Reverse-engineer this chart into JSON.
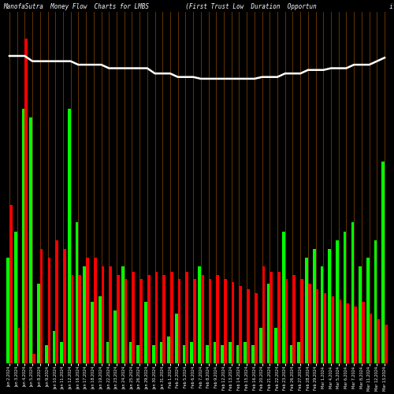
{
  "title": "ManofaSutra  Money Flow  Charts for LMBS          (First Trust Low  Duration  Opportun                    it",
  "background_color": "#000000",
  "grid_color": "#8B4500",
  "line_color": "#FFFFFF",
  "categories": [
    "Jan 2,2024",
    "Jan 3,2024",
    "Jan 4,2024",
    "Jan 5,2024",
    "Jan 8,2024",
    "Jan 9,2024",
    "Jan 10,2024",
    "Jan 11,2024",
    "Jan 12,2024",
    "Jan 16,2024",
    "Jan 17,2024",
    "Jan 18,2024",
    "Jan 19,2024",
    "Jan 22,2024",
    "Jan 23,2024",
    "Jan 24,2024",
    "Jan 25,2024",
    "Jan 26,2024",
    "Jan 29,2024",
    "Jan 30,2024",
    "Jan 31,2024",
    "Feb 1,2024",
    "Feb 2,2024",
    "Feb 5,2024",
    "Feb 6,2024",
    "Feb 7,2024",
    "Feb 8,2024",
    "Feb 9,2024",
    "Feb 12,2024",
    "Feb 13,2024",
    "Feb 14,2024",
    "Feb 15,2024",
    "Feb 16,2024",
    "Feb 20,2024",
    "Feb 21,2024",
    "Feb 22,2024",
    "Feb 23,2024",
    "Feb 26,2024",
    "Feb 27,2024",
    "Feb 28,2024",
    "Feb 29,2024",
    "Mar 1,2024",
    "Mar 4,2024",
    "Mar 5,2024",
    "Mar 6,2024",
    "Mar 7,2024",
    "Mar 8,2024",
    "Mar 11,2024",
    "Mar 12,2024",
    "Mar 13,2024"
  ],
  "green_bars": [
    60,
    75,
    145,
    140,
    45,
    10,
    18,
    12,
    145,
    80,
    55,
    35,
    38,
    12,
    30,
    55,
    12,
    10,
    35,
    10,
    12,
    15,
    28,
    10,
    12,
    55,
    10,
    12,
    10,
    12,
    10,
    12,
    10,
    20,
    45,
    20,
    75,
    10,
    12,
    60,
    65,
    55,
    65,
    70,
    75,
    80,
    55,
    60,
    70,
    115
  ],
  "red_bars": [
    90,
    20,
    185,
    5,
    65,
    60,
    70,
    65,
    50,
    50,
    60,
    60,
    55,
    55,
    50,
    48,
    52,
    48,
    50,
    52,
    50,
    52,
    48,
    52,
    48,
    50,
    48,
    50,
    48,
    46,
    44,
    42,
    40,
    55,
    52,
    52,
    48,
    50,
    48,
    45,
    42,
    40,
    38,
    36,
    34,
    32,
    35,
    28,
    25,
    22
  ],
  "line_values": [
    175,
    175,
    175,
    172,
    172,
    172,
    172,
    172,
    172,
    170,
    170,
    170,
    170,
    168,
    168,
    168,
    168,
    168,
    168,
    165,
    165,
    165,
    163,
    163,
    163,
    162,
    162,
    162,
    162,
    162,
    162,
    162,
    162,
    163,
    163,
    163,
    165,
    165,
    165,
    167,
    167,
    167,
    168,
    168,
    168,
    170,
    170,
    170,
    172,
    174
  ],
  "ylim_max": 200,
  "bar_width": 0.38,
  "figsize": [
    5.0,
    5.0
  ],
  "dpi": 100,
  "title_fontsize": 5.5,
  "tick_fontsize": 3.5
}
